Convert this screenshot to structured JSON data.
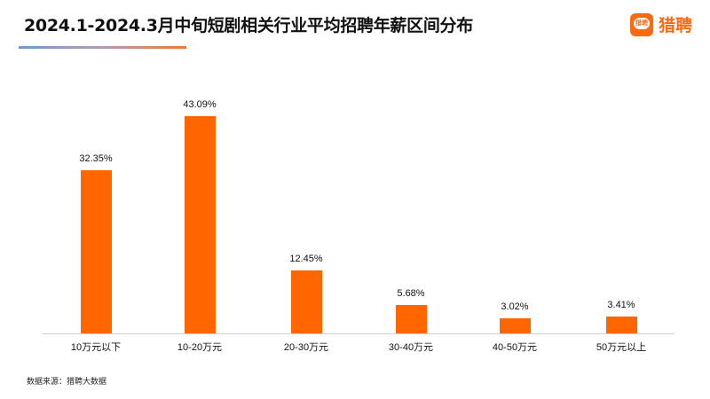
{
  "header": {
    "title": "2024.1-2024.3月中旬短剧相关行业平均招聘年薪区间分布",
    "logo_icon_text": "猎聘",
    "logo_text": "猎聘"
  },
  "footer": {
    "source": "数据来源：猎聘大数据"
  },
  "colors": {
    "bar": "#ff6600",
    "brand": "#fb6a10"
  },
  "chart_data": {
    "type": "bar",
    "title": "2024.1-2024.3月中旬短剧相关行业平均招聘年薪区间分布",
    "categories": [
      "10万元以下",
      "10-20万元",
      "20-30万元",
      "30-40万元",
      "40-50万元",
      "50万元以上"
    ],
    "values": [
      32.35,
      43.09,
      12.45,
      5.68,
      3.02,
      3.41
    ],
    "labels": [
      "32.35%",
      "43.09%",
      "12.45%",
      "5.68%",
      "3.02%",
      "3.41%"
    ],
    "xlabel": "",
    "ylabel": "",
    "ylim": [
      0,
      45
    ],
    "grid": false,
    "legend": null
  }
}
